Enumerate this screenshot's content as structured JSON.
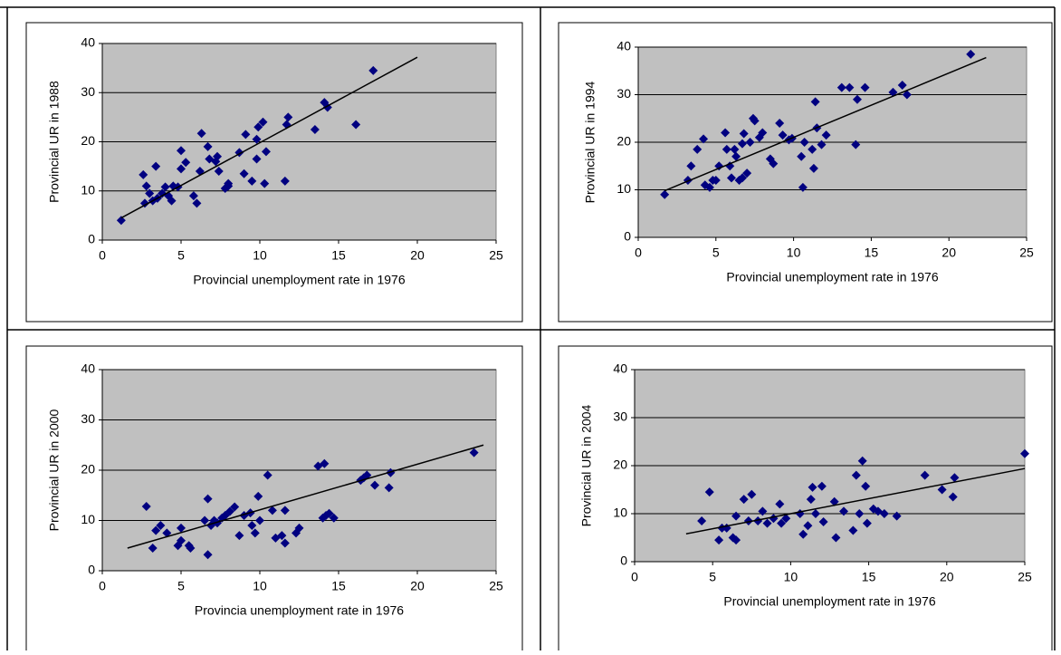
{
  "chart_data": [
    {
      "type": "scatter",
      "ylabel": "Provincial UR in 1988",
      "xlabel": "Provincial unemployment rate in 1976",
      "color": "#000080",
      "grid": true,
      "xlim": [
        0,
        25
      ],
      "xticks": [
        0,
        5,
        10,
        15,
        20,
        25
      ],
      "ylim": [
        0,
        40
      ],
      "yticks": [
        0,
        10,
        20,
        30,
        40
      ],
      "x": [
        1.2,
        2.6,
        2.7,
        2.8,
        3,
        3.2,
        3.4,
        3.5,
        3.8,
        4,
        4.2,
        4.4,
        4.5,
        4.8,
        5,
        5,
        5.3,
        5.8,
        6,
        6.2,
        6.3,
        6.7,
        6.8,
        7.2,
        7.3,
        7.4,
        7.8,
        8,
        8,
        8.7,
        9,
        9.1,
        9.5,
        9.8,
        9.8,
        9.9,
        10.2,
        10.3,
        10.4,
        11.6,
        11.7,
        11.8,
        13.5,
        14.1,
        14.3,
        16.1,
        17.2
      ],
      "y": [
        4,
        13.3,
        7.5,
        11,
        9.5,
        8,
        15,
        8.5,
        9.5,
        10.8,
        9,
        8,
        11,
        10.8,
        18.2,
        14.5,
        15.8,
        9,
        7.5,
        14,
        21.7,
        19,
        16.5,
        16,
        17,
        14,
        10.5,
        11,
        11.5,
        17.8,
        13.5,
        21.5,
        12,
        16.5,
        20.5,
        23,
        24,
        11.5,
        18,
        12,
        23.5,
        25,
        22.5,
        28,
        27,
        23.5,
        34.5
      ],
      "trend_x": [
        1.2,
        20
      ],
      "trend_y": [
        4.5,
        37.2
      ]
    },
    {
      "type": "scatter",
      "ylabel": "Provincial UR in 1994",
      "xlabel": "Provincial unemployment rate in 1976",
      "color": "#000080",
      "grid": true,
      "xlim": [
        0,
        25
      ],
      "xticks": [
        0,
        5,
        10,
        15,
        20,
        25
      ],
      "ylim": [
        0,
        40
      ],
      "yticks": [
        0,
        10,
        20,
        30,
        40
      ],
      "x": [
        1.7,
        3.2,
        3.4,
        3.8,
        4.2,
        4.3,
        4.6,
        4.8,
        5,
        5.2,
        5.6,
        5.7,
        5.9,
        6,
        6.2,
        6.3,
        6.5,
        6.7,
        6.7,
        6.8,
        7,
        7.2,
        7.4,
        7.5,
        7.8,
        8,
        8.5,
        8.7,
        9.1,
        9.3,
        9.7,
        9.9,
        10.5,
        10.6,
        10.7,
        11.2,
        11.3,
        11.4,
        11.5,
        11.8,
        12.1,
        13.1,
        13.6,
        14,
        14.1,
        14.6,
        16.4,
        17,
        17.3,
        21.4
      ],
      "y": [
        9,
        12,
        15,
        18.5,
        20.7,
        11,
        10.5,
        12,
        12,
        15,
        22,
        18.5,
        15,
        12.5,
        18.5,
        17,
        12,
        12.5,
        19.7,
        21.8,
        13.5,
        20,
        25,
        24.5,
        21,
        22,
        16.5,
        15.5,
        24,
        21.5,
        20.5,
        20.8,
        17,
        10.5,
        20,
        18.5,
        14.5,
        28.5,
        23,
        19.5,
        21.5,
        31.5,
        31.5,
        19.5,
        29,
        31.5,
        30.5,
        32,
        30,
        38.5
      ],
      "trend_x": [
        1.7,
        22.4
      ],
      "trend_y": [
        9.8,
        37.8
      ]
    },
    {
      "type": "scatter",
      "ylabel": "Provincial UR in 2000",
      "xlabel": "Provincia unemployment rate in 1976",
      "color": "#000080",
      "grid": true,
      "xlim": [
        0,
        25
      ],
      "xticks": [
        0,
        5,
        10,
        15,
        20,
        25
      ],
      "ylim": [
        0,
        40
      ],
      "yticks": [
        0,
        10,
        20,
        30,
        40
      ],
      "x": [
        2.8,
        3.2,
        3.4,
        3.7,
        4.1,
        5,
        4.8,
        5,
        5.5,
        5.6,
        6.5,
        6.7,
        6.7,
        6.9,
        7.1,
        7.3,
        7.6,
        7.8,
        8.1,
        8.4,
        8.7,
        9,
        9.4,
        9.5,
        9.7,
        9.9,
        10,
        10.5,
        10.8,
        11,
        11.4,
        11.6,
        11.6,
        12.3,
        12.5,
        13.7,
        14.1,
        14,
        14.2,
        14.4,
        14.7,
        16.4,
        16.6,
        16.8,
        17.3,
        18.2,
        18.3,
        23.6
      ],
      "y": [
        12.8,
        4.5,
        8,
        9,
        7.5,
        8.5,
        5,
        6,
        5,
        4.5,
        10,
        14.3,
        3.2,
        9,
        10,
        9.5,
        10.5,
        11,
        11.8,
        12.7,
        7,
        11,
        11.5,
        9,
        7.5,
        14.8,
        10,
        19,
        12,
        6.5,
        7,
        12,
        5.5,
        7.5,
        8.5,
        20.8,
        21.3,
        10.5,
        11,
        11.4,
        10.5,
        18,
        18.5,
        19,
        17,
        16.5,
        19.5,
        23.5
      ],
      "trend_x": [
        1.6,
        24.2
      ],
      "trend_y": [
        4.5,
        25
      ]
    },
    {
      "type": "scatter",
      "ylabel": "Provincial UR in 2004",
      "xlabel": "Provincial unemployment rate in 1976",
      "color": "#000080",
      "grid": true,
      "xlim": [
        0,
        25
      ],
      "xticks": [
        0,
        5,
        10,
        15,
        20,
        25
      ],
      "ylim": [
        0,
        40
      ],
      "yticks": [
        0,
        10,
        20,
        30,
        40
      ],
      "x": [
        4.3,
        4.8,
        5.4,
        5.6,
        5.9,
        6.3,
        6.5,
        6.5,
        7,
        7.3,
        7.5,
        7.9,
        8.2,
        8.5,
        8.9,
        9.3,
        9.4,
        9.7,
        10.6,
        10.8,
        11.1,
        11.3,
        11.4,
        11.6,
        12,
        12.1,
        12.8,
        12.9,
        13.4,
        14,
        14.2,
        14.4,
        14.6,
        14.8,
        14.9,
        15.3,
        15.6,
        16,
        16.8,
        18.6,
        19.7,
        20.4,
        20.5,
        25
      ],
      "y": [
        8.5,
        14.5,
        4.5,
        7,
        7,
        5,
        4.5,
        9.5,
        13,
        8.5,
        14,
        8.5,
        10.5,
        8,
        9,
        12,
        8,
        9,
        10,
        5.7,
        7.5,
        13,
        15.5,
        10,
        15.7,
        8.3,
        12.5,
        5,
        10.5,
        6.5,
        18,
        10,
        21,
        15.7,
        8,
        11,
        10.5,
        10,
        9.5,
        18,
        15,
        13.5,
        17.5,
        22.5
      ],
      "trend_x": [
        3.3,
        25
      ],
      "trend_y": [
        5.8,
        19.4
      ]
    }
  ]
}
